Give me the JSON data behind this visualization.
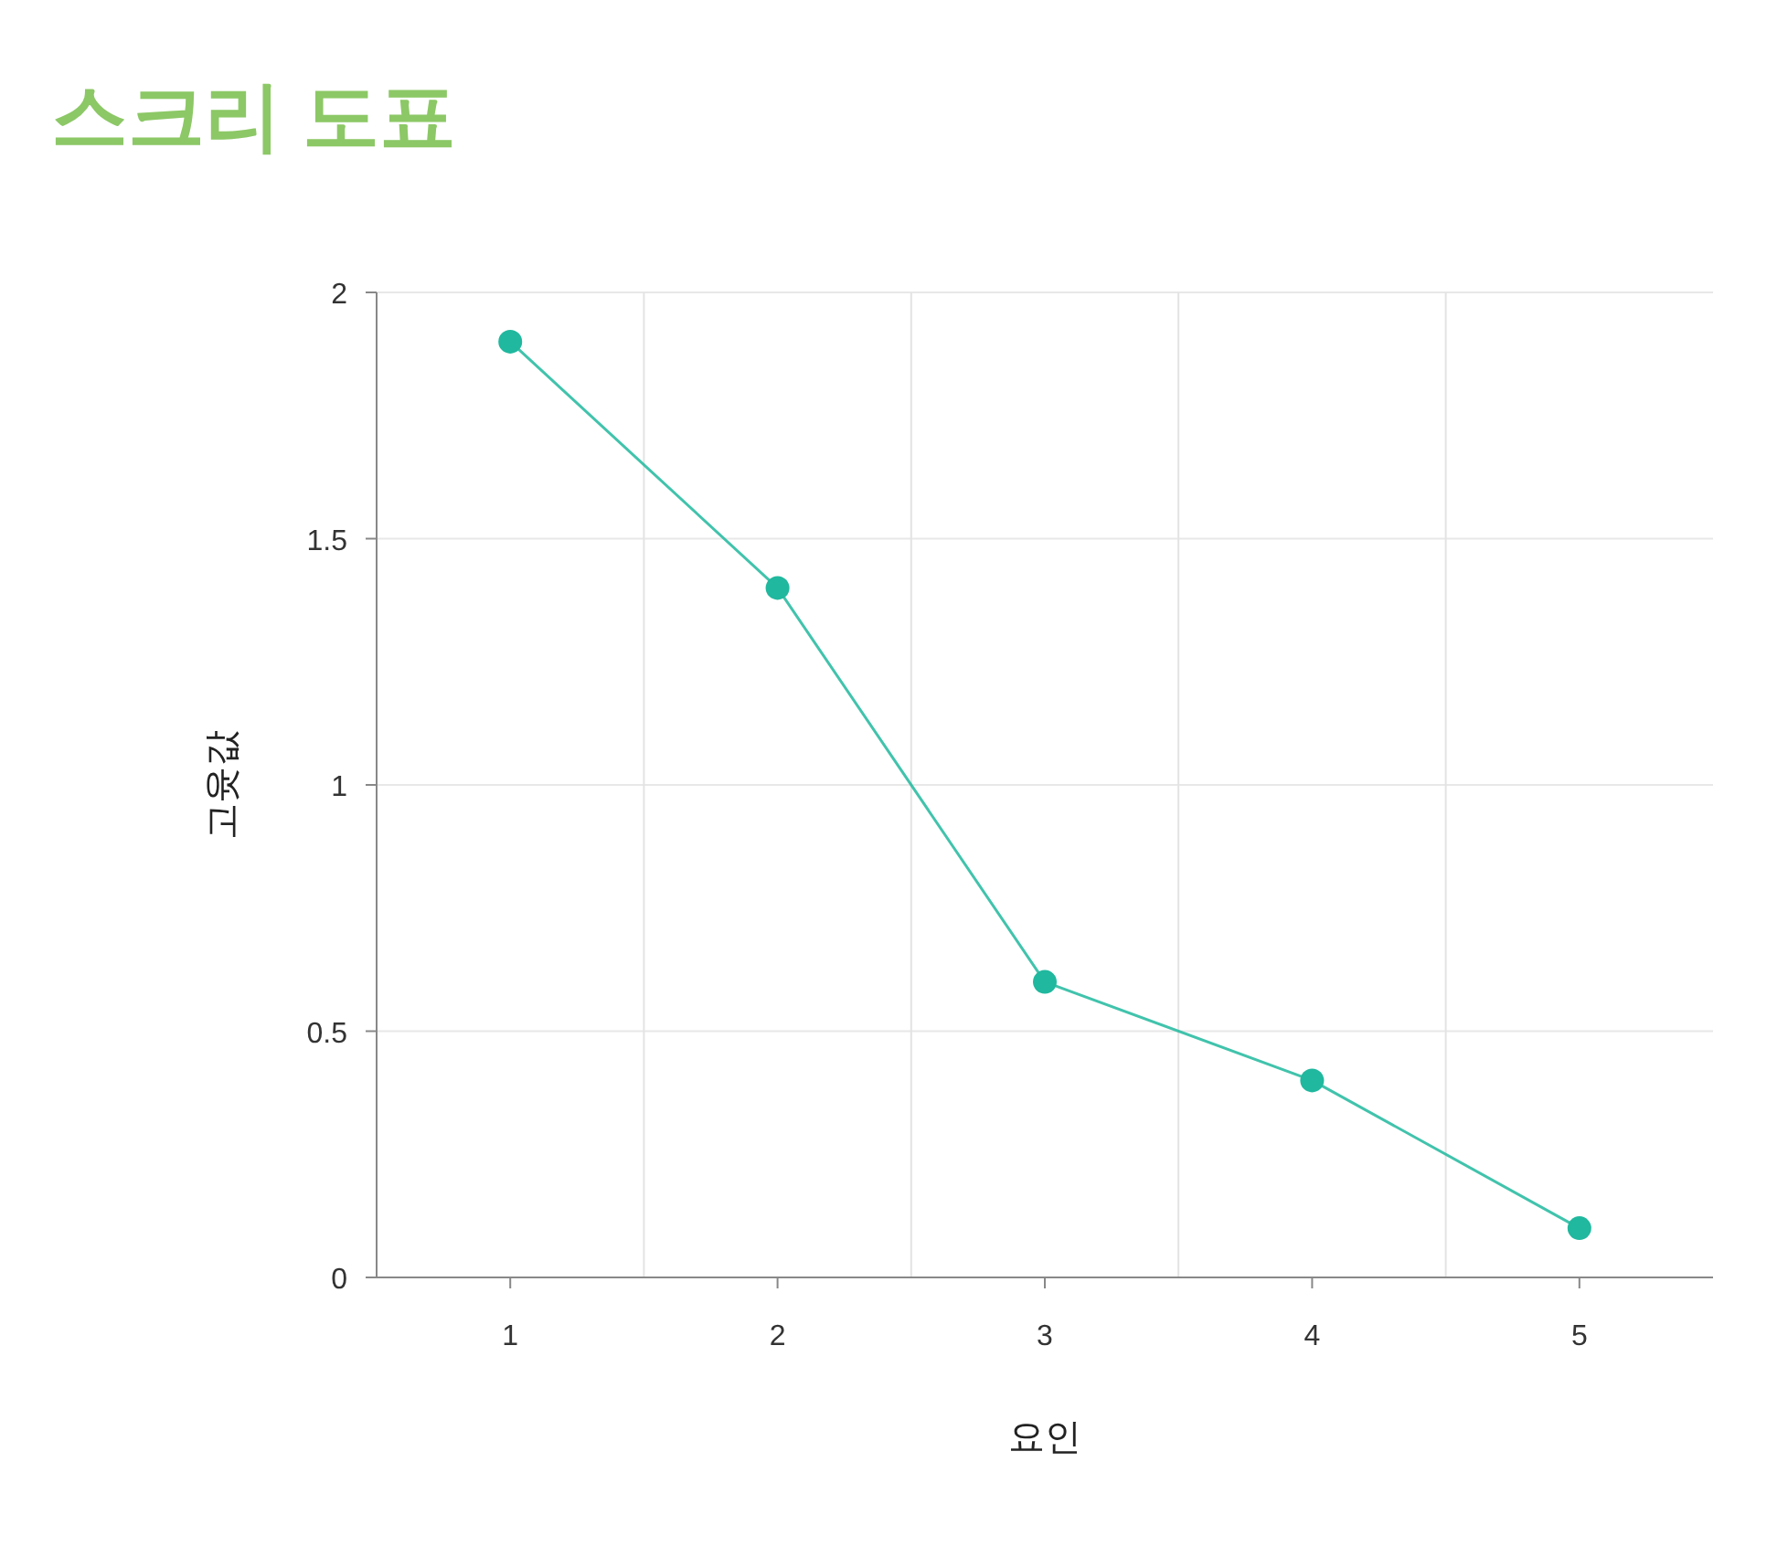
{
  "chart_data": {
    "type": "line",
    "title": "스크리 도표",
    "xlabel": "요인",
    "ylabel": "고윳값",
    "categories": [
      "1",
      "2",
      "3",
      "4",
      "5"
    ],
    "series": [
      {
        "color": "#20b89e",
        "values": [
          1.9,
          1.4,
          0.6,
          0.4,
          0.1
        ]
      }
    ],
    "ylim": [
      0,
      2
    ],
    "yticks": [
      0,
      0.5,
      1,
      1.5,
      2
    ],
    "grid": true,
    "marker": "circle",
    "line_style": "solid"
  }
}
